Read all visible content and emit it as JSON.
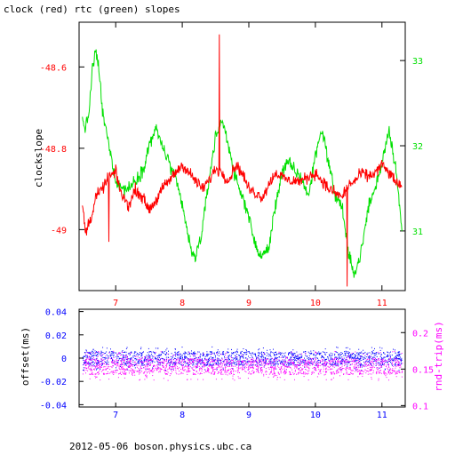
{
  "title": "clock (red) rtc (green) slopes",
  "footer": "2012-05-06  boson.physics.ubc.ca",
  "colors": {
    "clock": "#ff0000",
    "rtc": "#00e000",
    "offset": "#0000ff",
    "roundtrip": "#ff00ff",
    "axis": "#000000"
  },
  "chart_data": [
    {
      "type": "line",
      "xlabel": "",
      "ylabel": "clockslope",
      "y2label": "",
      "xlim": [
        6.45,
        11.35
      ],
      "ylim": [
        -49.15,
        -48.49
      ],
      "y2lim": [
        30.3,
        33.45
      ],
      "x_ticks": [
        7,
        8,
        9,
        10,
        11
      ],
      "y_ticks": [
        -48.6,
        -48.8,
        -49
      ],
      "y_tick_labels": [
        "-48.6",
        "-48.8",
        "-49"
      ],
      "y2_ticks": [
        31,
        32,
        33
      ],
      "series": [
        {
          "name": "clock",
          "axis": "left",
          "color": "#ff0000",
          "x": [
            6.5,
            6.55,
            6.6,
            6.65,
            6.7,
            6.8,
            6.9,
            7.0,
            7.1,
            7.2,
            7.3,
            7.4,
            7.5,
            7.6,
            7.7,
            7.8,
            7.9,
            8.0,
            8.1,
            8.2,
            8.3,
            8.4,
            8.5,
            8.6,
            8.7,
            8.8,
            8.9,
            9.0,
            9.1,
            9.2,
            9.3,
            9.4,
            9.5,
            9.6,
            9.7,
            9.8,
            9.9,
            10.0,
            10.1,
            10.2,
            10.3,
            10.4,
            10.5,
            10.6,
            10.7,
            10.8,
            10.9,
            11.0,
            11.1,
            11.2,
            11.3
          ],
          "values": [
            -48.94,
            -49.01,
            -48.98,
            -48.96,
            -48.92,
            -48.9,
            -48.87,
            -48.86,
            -48.92,
            -48.94,
            -48.9,
            -48.92,
            -48.95,
            -48.93,
            -48.9,
            -48.88,
            -48.86,
            -48.84,
            -48.86,
            -48.88,
            -48.9,
            -48.88,
            -48.85,
            -48.86,
            -48.88,
            -48.84,
            -48.86,
            -48.9,
            -48.91,
            -48.92,
            -48.89,
            -48.86,
            -48.87,
            -48.88,
            -48.88,
            -48.88,
            -48.87,
            -48.86,
            -48.88,
            -48.9,
            -48.91,
            -48.92,
            -48.89,
            -48.88,
            -48.86,
            -48.87,
            -48.86,
            -48.84,
            -48.86,
            -48.88,
            -48.9
          ]
        },
        {
          "name": "rtc",
          "axis": "right",
          "color": "#00e000",
          "x": [
            6.5,
            6.55,
            6.6,
            6.65,
            6.7,
            6.75,
            6.8,
            6.85,
            6.9,
            7.0,
            7.1,
            7.2,
            7.3,
            7.4,
            7.5,
            7.6,
            7.7,
            7.8,
            7.9,
            8.0,
            8.1,
            8.15,
            8.2,
            8.3,
            8.4,
            8.5,
            8.6,
            8.7,
            8.8,
            8.9,
            9.0,
            9.1,
            9.2,
            9.3,
            9.4,
            9.5,
            9.6,
            9.7,
            9.8,
            9.9,
            10.0,
            10.1,
            10.2,
            10.3,
            10.4,
            10.5,
            10.6,
            10.7,
            10.8,
            10.9,
            11.0,
            11.1,
            11.2,
            11.3
          ],
          "values": [
            32.3,
            32.2,
            32.4,
            32.9,
            33.1,
            32.9,
            32.4,
            32.2,
            32.0,
            31.6,
            31.5,
            31.5,
            31.6,
            31.7,
            32.0,
            32.2,
            32.0,
            31.8,
            31.6,
            31.3,
            30.9,
            30.7,
            30.7,
            31.0,
            31.6,
            32.1,
            32.3,
            32.0,
            31.6,
            31.4,
            31.2,
            30.8,
            30.7,
            30.8,
            31.3,
            31.7,
            31.8,
            31.7,
            31.6,
            31.4,
            31.9,
            32.2,
            31.8,
            31.4,
            31.3,
            30.7,
            30.5,
            30.8,
            31.3,
            31.5,
            31.8,
            32.2,
            31.8,
            31.0
          ]
        }
      ]
    },
    {
      "type": "scatter",
      "xlabel": "",
      "ylabel": "offset(ms)",
      "y2label": "rnd-trip(ms)",
      "xlim": [
        6.45,
        11.35
      ],
      "ylim": [
        -0.042,
        0.042
      ],
      "y2lim": [
        0.098,
        0.232
      ],
      "x_ticks": [
        7,
        8,
        9,
        10,
        11
      ],
      "y_ticks": [
        0.04,
        0.02,
        0,
        -0.02,
        -0.04
      ],
      "y_tick_labels": [
        "0.04",
        "0.02",
        "0",
        "-0.02",
        "-0.04"
      ],
      "y2_ticks": [
        0.2,
        0.15,
        0.1
      ],
      "y2_tick_labels": [
        "0.2",
        "0.15",
        "0.1"
      ],
      "series": [
        {
          "name": "offset",
          "axis": "left",
          "color": "#0000ff",
          "x_range": [
            6.5,
            11.3
          ],
          "y_range": [
            -0.01,
            0.01
          ],
          "y_core": [
            -0.006,
            0.006
          ]
        },
        {
          "name": "round trip",
          "axis": "right",
          "color": "#ff00ff",
          "x_range": [
            6.5,
            11.3
          ],
          "y_range": [
            0.135,
            0.175
          ],
          "y_core": [
            0.143,
            0.165
          ]
        }
      ]
    }
  ]
}
